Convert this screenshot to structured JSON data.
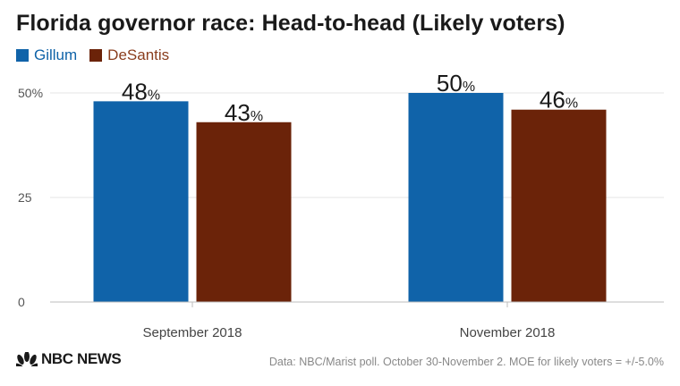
{
  "header": {
    "title": "Florida governor race: Head-to-head (Likely voters)"
  },
  "legend": [
    {
      "label": "Gillum",
      "color": "#1063a9"
    },
    {
      "label": "DeSantis",
      "color": "#6b2309"
    }
  ],
  "chart_data": {
    "type": "bar",
    "title": "Florida governor race: Head-to-head (Likely voters)",
    "categories": [
      "September 2018",
      "November 2018"
    ],
    "series": [
      {
        "name": "Gillum",
        "values": [
          48,
          50
        ],
        "color": "#1063a9"
      },
      {
        "name": "DeSantis",
        "values": [
          43,
          46
        ],
        "color": "#6b2309"
      }
    ],
    "value_suffix": "%",
    "ylim": [
      0,
      50
    ],
    "yticks": [
      0,
      25,
      50
    ],
    "ytick_labels": [
      "0",
      "25",
      "50%"
    ],
    "xlabel": "",
    "ylabel": "",
    "grid": true,
    "legend_position": "top-left"
  },
  "footer": {
    "logo_text": "NBC NEWS",
    "source": "Data: NBC/Marist poll. October 30-November 2. MOE for likely voters = +/-5.0%"
  }
}
